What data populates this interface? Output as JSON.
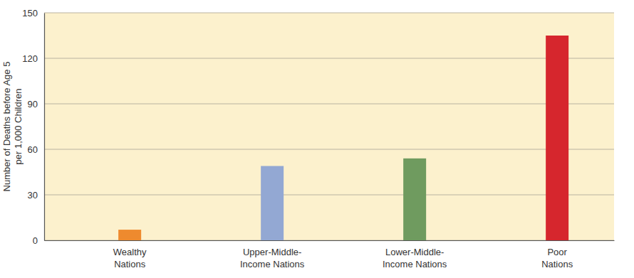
{
  "chart_data": {
    "type": "bar",
    "y_label": "Number of Deaths before Age 5\nper 1,000 Children",
    "categories": [
      "Wealthy\nNations",
      "Upper-Middle-\nIncome Nations",
      "Lower-Middle-\nIncome Nations",
      "Poor\nNations"
    ],
    "values": [
      7,
      49,
      54,
      135
    ],
    "colors": [
      "#ee8a2e",
      "#93a8d3",
      "#6f9b5f",
      "#d6262d"
    ],
    "ylim": [
      0,
      150
    ],
    "yticks": [
      0,
      30,
      60,
      90,
      120,
      150
    ],
    "grid": true
  }
}
